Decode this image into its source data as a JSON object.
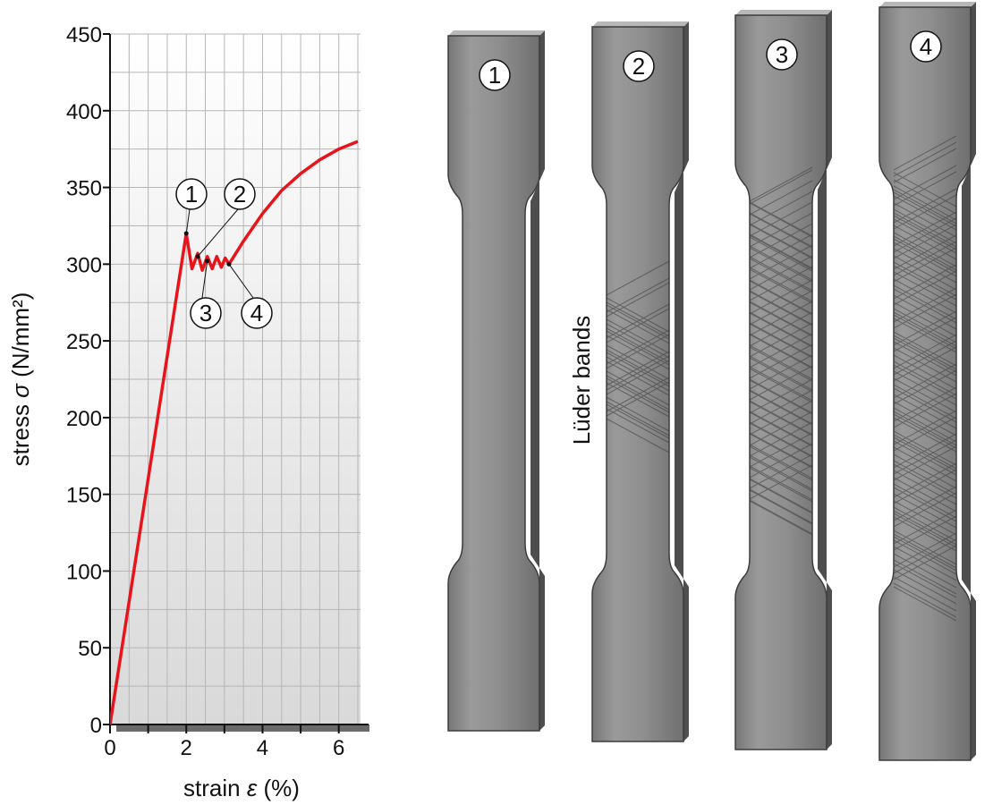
{
  "chart_data": {
    "type": "line",
    "xlabel_prefix": "strain ",
    "xlabel_symbol": "ε",
    "xlabel_suffix": " (%)",
    "ylabel_prefix": "stress ",
    "ylabel_symbol": "σ",
    "ylabel_suffix": " (N/mm²)",
    "xlim": [
      0,
      6.8
    ],
    "ylim": [
      0,
      450
    ],
    "x_ticks": [
      0,
      2,
      4,
      6
    ],
    "y_ticks": [
      0,
      50,
      100,
      150,
      200,
      250,
      300,
      350,
      400,
      450
    ],
    "grid": true,
    "series": [
      {
        "color": "#e8141b",
        "points": [
          [
            0,
            0
          ],
          [
            2.0,
            320
          ],
          [
            2.15,
            297
          ],
          [
            2.3,
            307
          ],
          [
            2.42,
            296
          ],
          [
            2.55,
            305
          ],
          [
            2.68,
            297
          ],
          [
            2.8,
            305
          ],
          [
            2.92,
            298
          ],
          [
            3.02,
            304
          ],
          [
            3.12,
            300
          ],
          [
            3.5,
            315
          ],
          [
            4.0,
            333
          ],
          [
            4.5,
            348
          ],
          [
            5.0,
            359
          ],
          [
            5.5,
            368
          ],
          [
            6.0,
            375
          ],
          [
            6.5,
            380
          ]
        ]
      }
    ],
    "markers": [
      {
        "label": "1",
        "x": 2.0,
        "y": 320
      },
      {
        "label": "2",
        "x": 2.3,
        "y": 305
      },
      {
        "label": "3",
        "x": 2.55,
        "y": 302
      },
      {
        "label": "4",
        "x": 3.12,
        "y": 300
      }
    ]
  },
  "specimens": [
    {
      "label": "1"
    },
    {
      "label": "2"
    },
    {
      "label": "3"
    },
    {
      "label": "4"
    }
  ],
  "side_label": "Lüder bands",
  "colors": {
    "curve": "#e8141b",
    "specimen_body": "#8c8c8c",
    "specimen_edge": "#5a5a5a"
  }
}
